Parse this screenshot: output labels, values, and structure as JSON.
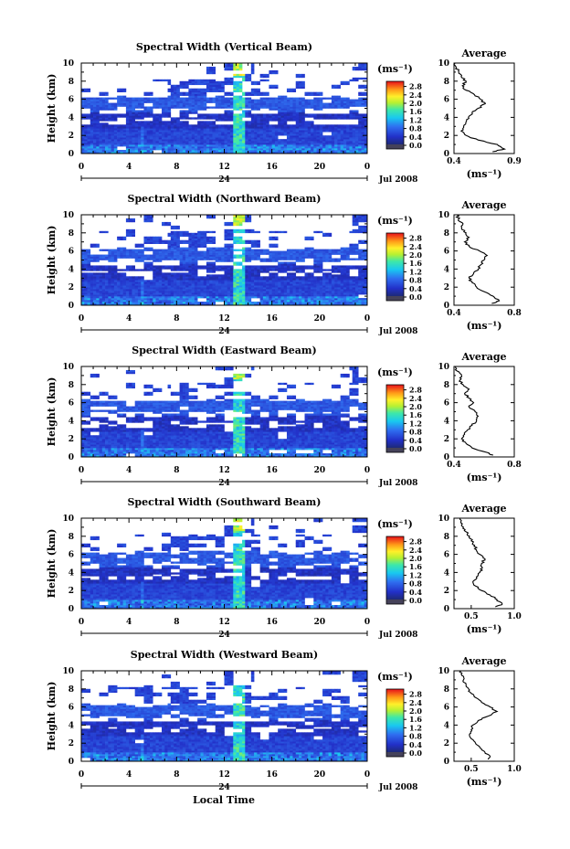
{
  "figure": {
    "xlabel": "Local Time"
  },
  "chart_data": [
    {
      "type": "heatmap",
      "title": "Spectral Width (Vertical Beam)",
      "ylabel": "Height (km)",
      "xlabel": "",
      "x_ticks": [
        "0",
        "4",
        "8",
        "12",
        "16",
        "20",
        "0"
      ],
      "y_ticks": [
        "0",
        "2",
        "4",
        "6",
        "8",
        "10"
      ],
      "xlim": [
        0,
        24
      ],
      "ylim": [
        0,
        10
      ],
      "date_day": "24",
      "date_label": "Jul 2008",
      "colorbar": {
        "unit": "(ms⁻¹)",
        "ticks": [
          "2.8",
          "2.4",
          "2.0",
          "1.6",
          "1.2",
          "0.8",
          "0.4",
          "0.0"
        ],
        "range": [
          0,
          3.0
        ]
      },
      "profile": {
        "title": "Average",
        "xlabel": "(ms⁻¹)",
        "x_ticks": [
          "0.4",
          "0.9"
        ],
        "xlim": [
          0.4,
          0.9
        ],
        "y_ticks": [
          "0",
          "2",
          "4",
          "6",
          "8",
          "10"
        ],
        "ylim": [
          0,
          10
        ],
        "heights": [
          0.2,
          0.5,
          1.0,
          1.5,
          2.0,
          2.5,
          3.0,
          3.5,
          4.0,
          4.5,
          5.0,
          5.5,
          6.0,
          6.5,
          7.0,
          7.5,
          8.0,
          8.5,
          9.0,
          9.5,
          10.0
        ],
        "values": [
          0.72,
          0.82,
          0.76,
          0.6,
          0.5,
          0.46,
          0.48,
          0.5,
          0.52,
          0.55,
          0.6,
          0.66,
          0.62,
          0.57,
          0.5,
          0.47,
          0.5,
          0.46,
          0.44,
          0.42,
          0.41
        ]
      }
    },
    {
      "type": "heatmap",
      "title": "Spectral Width (Northward Beam)",
      "ylabel": "Height (km)",
      "xlabel": "",
      "x_ticks": [
        "0",
        "4",
        "8",
        "12",
        "16",
        "20",
        "0"
      ],
      "y_ticks": [
        "0",
        "2",
        "4",
        "6",
        "8",
        "10"
      ],
      "xlim": [
        0,
        24
      ],
      "ylim": [
        0,
        10
      ],
      "date_day": "24",
      "date_label": "Jul 2008",
      "colorbar": {
        "unit": "(ms⁻¹)",
        "ticks": [
          "2.8",
          "2.4",
          "2.0",
          "1.6",
          "1.2",
          "0.8",
          "0.4",
          "0.0"
        ],
        "range": [
          0,
          3.0
        ]
      },
      "profile": {
        "title": "Average",
        "xlabel": "(ms⁻¹)",
        "x_ticks": [
          "0.4",
          "0.8"
        ],
        "xlim": [
          0.4,
          0.8
        ],
        "y_ticks": [
          "0",
          "2",
          "4",
          "6",
          "8",
          "10"
        ],
        "ylim": [
          0,
          10
        ],
        "heights": [
          0.2,
          0.5,
          1.0,
          1.5,
          2.0,
          2.5,
          3.0,
          3.5,
          4.0,
          4.5,
          5.0,
          5.5,
          6.0,
          6.5,
          7.0,
          7.5,
          8.0,
          8.5,
          9.0,
          9.5,
          10.0
        ],
        "values": [
          0.65,
          0.7,
          0.66,
          0.6,
          0.55,
          0.52,
          0.5,
          0.53,
          0.56,
          0.58,
          0.6,
          0.62,
          0.57,
          0.5,
          0.47,
          0.5,
          0.48,
          0.45,
          0.46,
          0.43,
          0.42
        ]
      }
    },
    {
      "type": "heatmap",
      "title": "Spectral Width (Eastward Beam)",
      "ylabel": "Height (km)",
      "xlabel": "",
      "x_ticks": [
        "0",
        "4",
        "8",
        "12",
        "16",
        "20",
        "0"
      ],
      "y_ticks": [
        "0",
        "2",
        "4",
        "6",
        "8",
        "10"
      ],
      "xlim": [
        0,
        24
      ],
      "ylim": [
        0,
        10
      ],
      "date_day": "24",
      "date_label": "Jul 2008",
      "colorbar": {
        "unit": "(ms⁻¹)",
        "ticks": [
          "2.8",
          "2.4",
          "2.0",
          "1.6",
          "1.2",
          "0.8",
          "0.4",
          "0.0"
        ],
        "range": [
          0,
          3.0
        ]
      },
      "profile": {
        "title": "Average",
        "xlabel": "(ms⁻¹)",
        "x_ticks": [
          "0.4",
          "0.8"
        ],
        "xlim": [
          0.4,
          0.8
        ],
        "y_ticks": [
          "0",
          "2",
          "4",
          "6",
          "8",
          "10"
        ],
        "ylim": [
          0,
          10
        ],
        "heights": [
          0.2,
          0.5,
          1.0,
          1.5,
          2.0,
          2.5,
          3.0,
          3.5,
          4.0,
          4.5,
          5.0,
          5.5,
          6.0,
          6.5,
          7.0,
          7.5,
          8.0,
          8.5,
          9.0,
          9.5,
          10.0
        ],
        "values": [
          0.66,
          0.62,
          0.52,
          0.48,
          0.45,
          0.47,
          0.49,
          0.52,
          0.55,
          0.56,
          0.54,
          0.5,
          0.53,
          0.5,
          0.47,
          0.5,
          0.46,
          0.44,
          0.45,
          0.42,
          0.41
        ]
      }
    },
    {
      "type": "heatmap",
      "title": "Spectral Width (Southward Beam)",
      "ylabel": "Height (km)",
      "xlabel": "",
      "x_ticks": [
        "0",
        "4",
        "8",
        "12",
        "16",
        "20",
        "0"
      ],
      "y_ticks": [
        "0",
        "2",
        "4",
        "6",
        "8",
        "10"
      ],
      "xlim": [
        0,
        24
      ],
      "ylim": [
        0,
        10
      ],
      "date_day": "24",
      "date_label": "Jul 2008",
      "colorbar": {
        "unit": "(ms⁻¹)",
        "ticks": [
          "2.8",
          "2.4",
          "2.0",
          "1.6",
          "1.2",
          "0.8",
          "0.4",
          "0.0"
        ],
        "range": [
          0,
          3.0
        ]
      },
      "profile": {
        "title": "Average",
        "xlabel": "(ms⁻¹)",
        "x_ticks": [
          "0.5",
          "1.0"
        ],
        "xlim": [
          0.3,
          1.0
        ],
        "y_ticks": [
          "0",
          "2",
          "4",
          "6",
          "8",
          "10"
        ],
        "ylim": [
          0,
          10
        ],
        "heights": [
          0.2,
          0.5,
          1.0,
          1.5,
          2.0,
          2.5,
          3.0,
          3.5,
          4.0,
          4.5,
          5.0,
          5.5,
          6.0,
          6.5,
          7.0,
          7.5,
          8.0,
          8.5,
          9.0,
          9.5,
          10.0
        ],
        "values": [
          0.78,
          0.86,
          0.8,
          0.72,
          0.62,
          0.55,
          0.52,
          0.56,
          0.6,
          0.63,
          0.62,
          0.66,
          0.6,
          0.56,
          0.54,
          0.5,
          0.48,
          0.44,
          0.41,
          0.38,
          0.37
        ]
      }
    },
    {
      "type": "heatmap",
      "title": "Spectral Width (Westward Beam)",
      "ylabel": "Height (km)",
      "xlabel": "",
      "x_ticks": [
        "0",
        "4",
        "8",
        "12",
        "16",
        "20",
        "0"
      ],
      "y_ticks": [
        "0",
        "2",
        "4",
        "6",
        "8",
        "10"
      ],
      "xlim": [
        0,
        24
      ],
      "ylim": [
        0,
        10
      ],
      "date_day": "24",
      "date_label": "Jul 2008",
      "colorbar": {
        "unit": "(ms⁻¹)",
        "ticks": [
          "2.8",
          "2.4",
          "2.0",
          "1.6",
          "1.2",
          "0.8",
          "0.4",
          "0.0"
        ],
        "range": [
          0,
          3.0
        ]
      },
      "profile": {
        "title": "Average",
        "xlabel": "(ms⁻¹)",
        "x_ticks": [
          "0.5",
          "1.0"
        ],
        "xlim": [
          0.3,
          1.0
        ],
        "y_ticks": [
          "0",
          "2",
          "4",
          "6",
          "8",
          "10"
        ],
        "ylim": [
          0,
          10
        ],
        "heights": [
          0.2,
          0.5,
          1.0,
          1.5,
          2.0,
          2.5,
          3.0,
          3.5,
          4.0,
          4.5,
          5.0,
          5.5,
          6.0,
          6.5,
          7.0,
          7.5,
          8.0,
          8.5,
          9.0,
          9.5,
          10.0
        ],
        "values": [
          0.7,
          0.72,
          0.66,
          0.6,
          0.55,
          0.5,
          0.48,
          0.5,
          0.52,
          0.58,
          0.7,
          0.8,
          0.72,
          0.62,
          0.56,
          0.5,
          0.47,
          0.44,
          0.41,
          0.39,
          0.38
        ]
      }
    }
  ]
}
